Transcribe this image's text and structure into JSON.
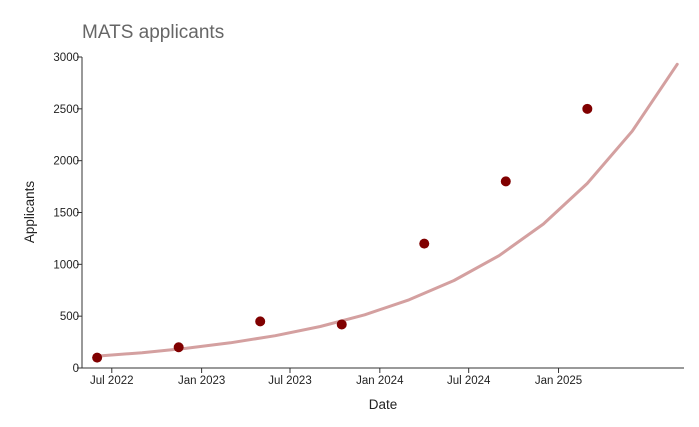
{
  "chart_data": {
    "type": "scatter",
    "title": "MATS applicants",
    "xlabel": "Date",
    "ylabel": "Applicants",
    "x_axis_type": "date",
    "xlim": [
      "2022-05-01",
      "2025-09-15"
    ],
    "ylim": [
      0,
      3000
    ],
    "x_ticks": [
      {
        "date": "2022-07-01",
        "label": "Jul 2022"
      },
      {
        "date": "2023-01-01",
        "label": "Jan 2023"
      },
      {
        "date": "2023-07-01",
        "label": "Jul 2023"
      },
      {
        "date": "2024-01-01",
        "label": "Jan 2024"
      },
      {
        "date": "2024-07-01",
        "label": "Jul 2024"
      },
      {
        "date": "2025-01-01",
        "label": "Jan 2025"
      }
    ],
    "y_ticks": [
      0,
      500,
      1000,
      1500,
      2000,
      2500,
      3000
    ],
    "grid": false,
    "series": [
      {
        "type": "scatter",
        "color": "#800000",
        "points": [
          {
            "x": "2022-06-01",
            "y": 100
          },
          {
            "x": "2022-11-15",
            "y": 200
          },
          {
            "x": "2023-05-01",
            "y": 450
          },
          {
            "x": "2023-10-15",
            "y": 420
          },
          {
            "x": "2024-04-01",
            "y": 1200
          },
          {
            "x": "2024-09-15",
            "y": 1800
          },
          {
            "x": "2025-03-01",
            "y": 2500
          }
        ]
      },
      {
        "type": "line",
        "color": "#d4a0a0",
        "points": [
          {
            "x": "2022-06-01",
            "y": 115
          },
          {
            "x": "2022-09-01",
            "y": 148
          },
          {
            "x": "2022-12-01",
            "y": 190
          },
          {
            "x": "2023-03-01",
            "y": 243
          },
          {
            "x": "2023-06-01",
            "y": 312
          },
          {
            "x": "2023-09-01",
            "y": 400
          },
          {
            "x": "2023-12-01",
            "y": 513
          },
          {
            "x": "2024-03-01",
            "y": 658
          },
          {
            "x": "2024-06-01",
            "y": 844
          },
          {
            "x": "2024-09-01",
            "y": 1083
          },
          {
            "x": "2024-12-01",
            "y": 1389
          },
          {
            "x": "2025-03-01",
            "y": 1781
          },
          {
            "x": "2025-06-01",
            "y": 2284
          },
          {
            "x": "2025-09-01",
            "y": 2930
          }
        ]
      }
    ]
  }
}
